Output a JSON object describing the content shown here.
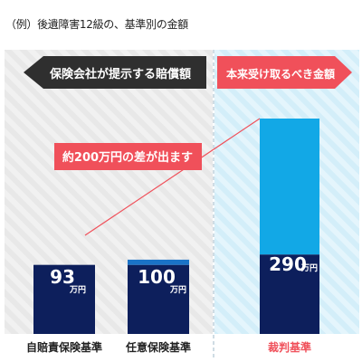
{
  "caption": "（例）後遺障害12級の、基準別の金額",
  "colors": {
    "navy": "#0d1f5c",
    "light_blue": "#12a8e6",
    "mid_blue": "#1a73c7",
    "red": "#f0505a",
    "dark_arrow": "#2f2f2f",
    "gray_zone": "#f1f1f1",
    "blue_zone": "#dff3fb",
    "text_dark": "#222222"
  },
  "header": {
    "insurer_label": "保険会社が提示する賠償額",
    "court_label": "本来受け取るべき金額"
  },
  "callout": {
    "label": "約200万円の差が出ます"
  },
  "chart_data": {
    "type": "bar",
    "unit": "万円",
    "ylim": [
      0,
      300
    ],
    "categories": [
      "自賠責保険基準",
      "任意保険基準",
      "裁判基準"
    ],
    "values": [
      93,
      100,
      290
    ],
    "value_labels": [
      "93",
      "100",
      "290"
    ],
    "highlight_category": "裁判基準",
    "difference_label": "約200万円の差が出ます"
  }
}
